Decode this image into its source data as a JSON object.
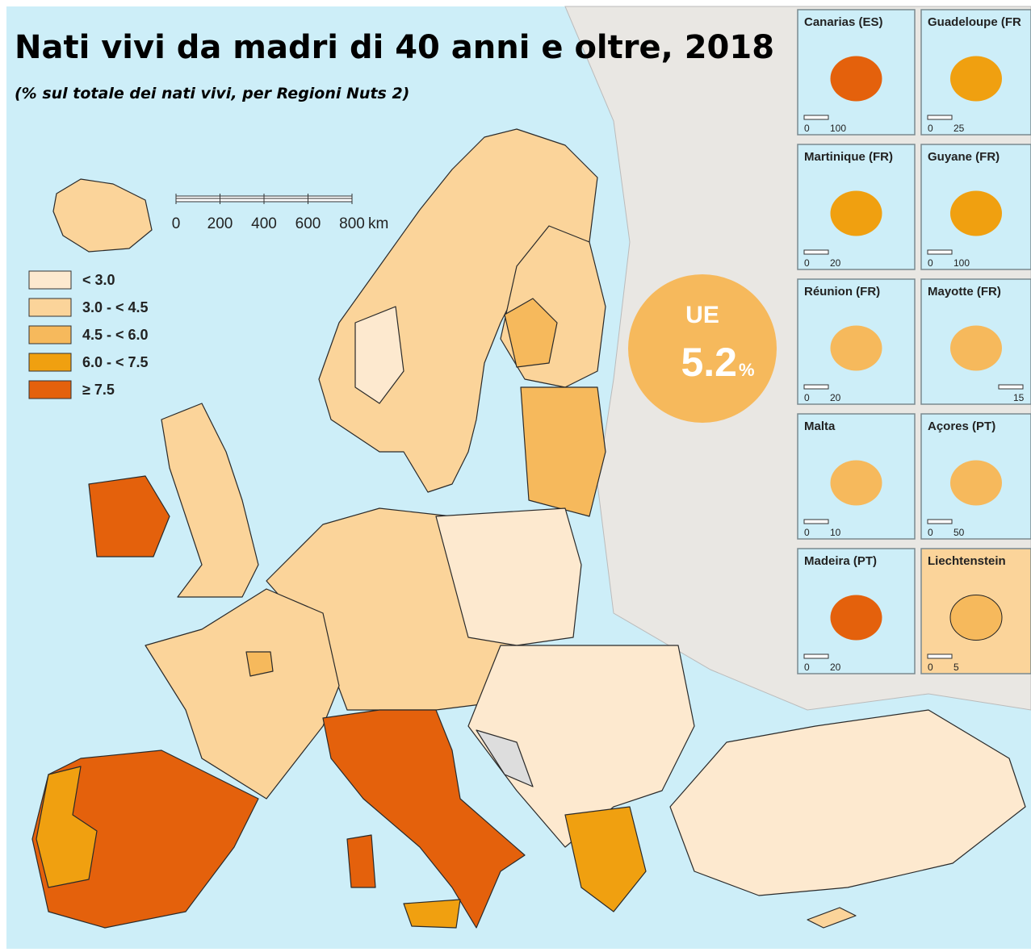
{
  "title": "Nati vivi da madri di 40 anni e oltre, 2018",
  "subtitle": "(% sul totale dei nati vivi, per Regioni Nuts 2)",
  "legend": [
    {
      "label": "< 3.0",
      "color": "#fde9cf"
    },
    {
      "label": "3.0 - < 4.5",
      "color": "#fbd49a"
    },
    {
      "label": "4.5 - < 6.0",
      "color": "#f6b95c"
    },
    {
      "label": "6.0 - < 7.5",
      "color": "#f0a010"
    },
    {
      "label": "≥ 7.5",
      "color": "#e4610c"
    }
  ],
  "scale_bar": {
    "ticks": [
      "0",
      "200",
      "400",
      "600",
      "800"
    ],
    "unit": "km"
  },
  "eu_badge": {
    "label": "UE",
    "value": "5.2",
    "unit": "%"
  },
  "insets": [
    {
      "name": "Canarias (ES)",
      "scale": [
        "0",
        "100"
      ]
    },
    {
      "name": "Guadeloupe (FR",
      "scale": [
        "0",
        "25"
      ]
    },
    {
      "name": "Martinique (FR)",
      "scale": [
        "0",
        "20"
      ]
    },
    {
      "name": "Guyane (FR)",
      "scale": [
        "0",
        "100"
      ]
    },
    {
      "name": "Réunion (FR)",
      "scale": [
        "0",
        "20"
      ]
    },
    {
      "name": "Mayotte (FR)",
      "scale": [
        "15"
      ]
    },
    {
      "name": "Malta",
      "scale": [
        "0",
        "10"
      ]
    },
    {
      "name": "Açores (PT)",
      "scale": [
        "0",
        "50"
      ]
    },
    {
      "name": "Madeira (PT)",
      "scale": [
        "0",
        "20"
      ]
    },
    {
      "name": "Liechtenstein",
      "scale": [
        "0",
        "5"
      ]
    }
  ]
}
